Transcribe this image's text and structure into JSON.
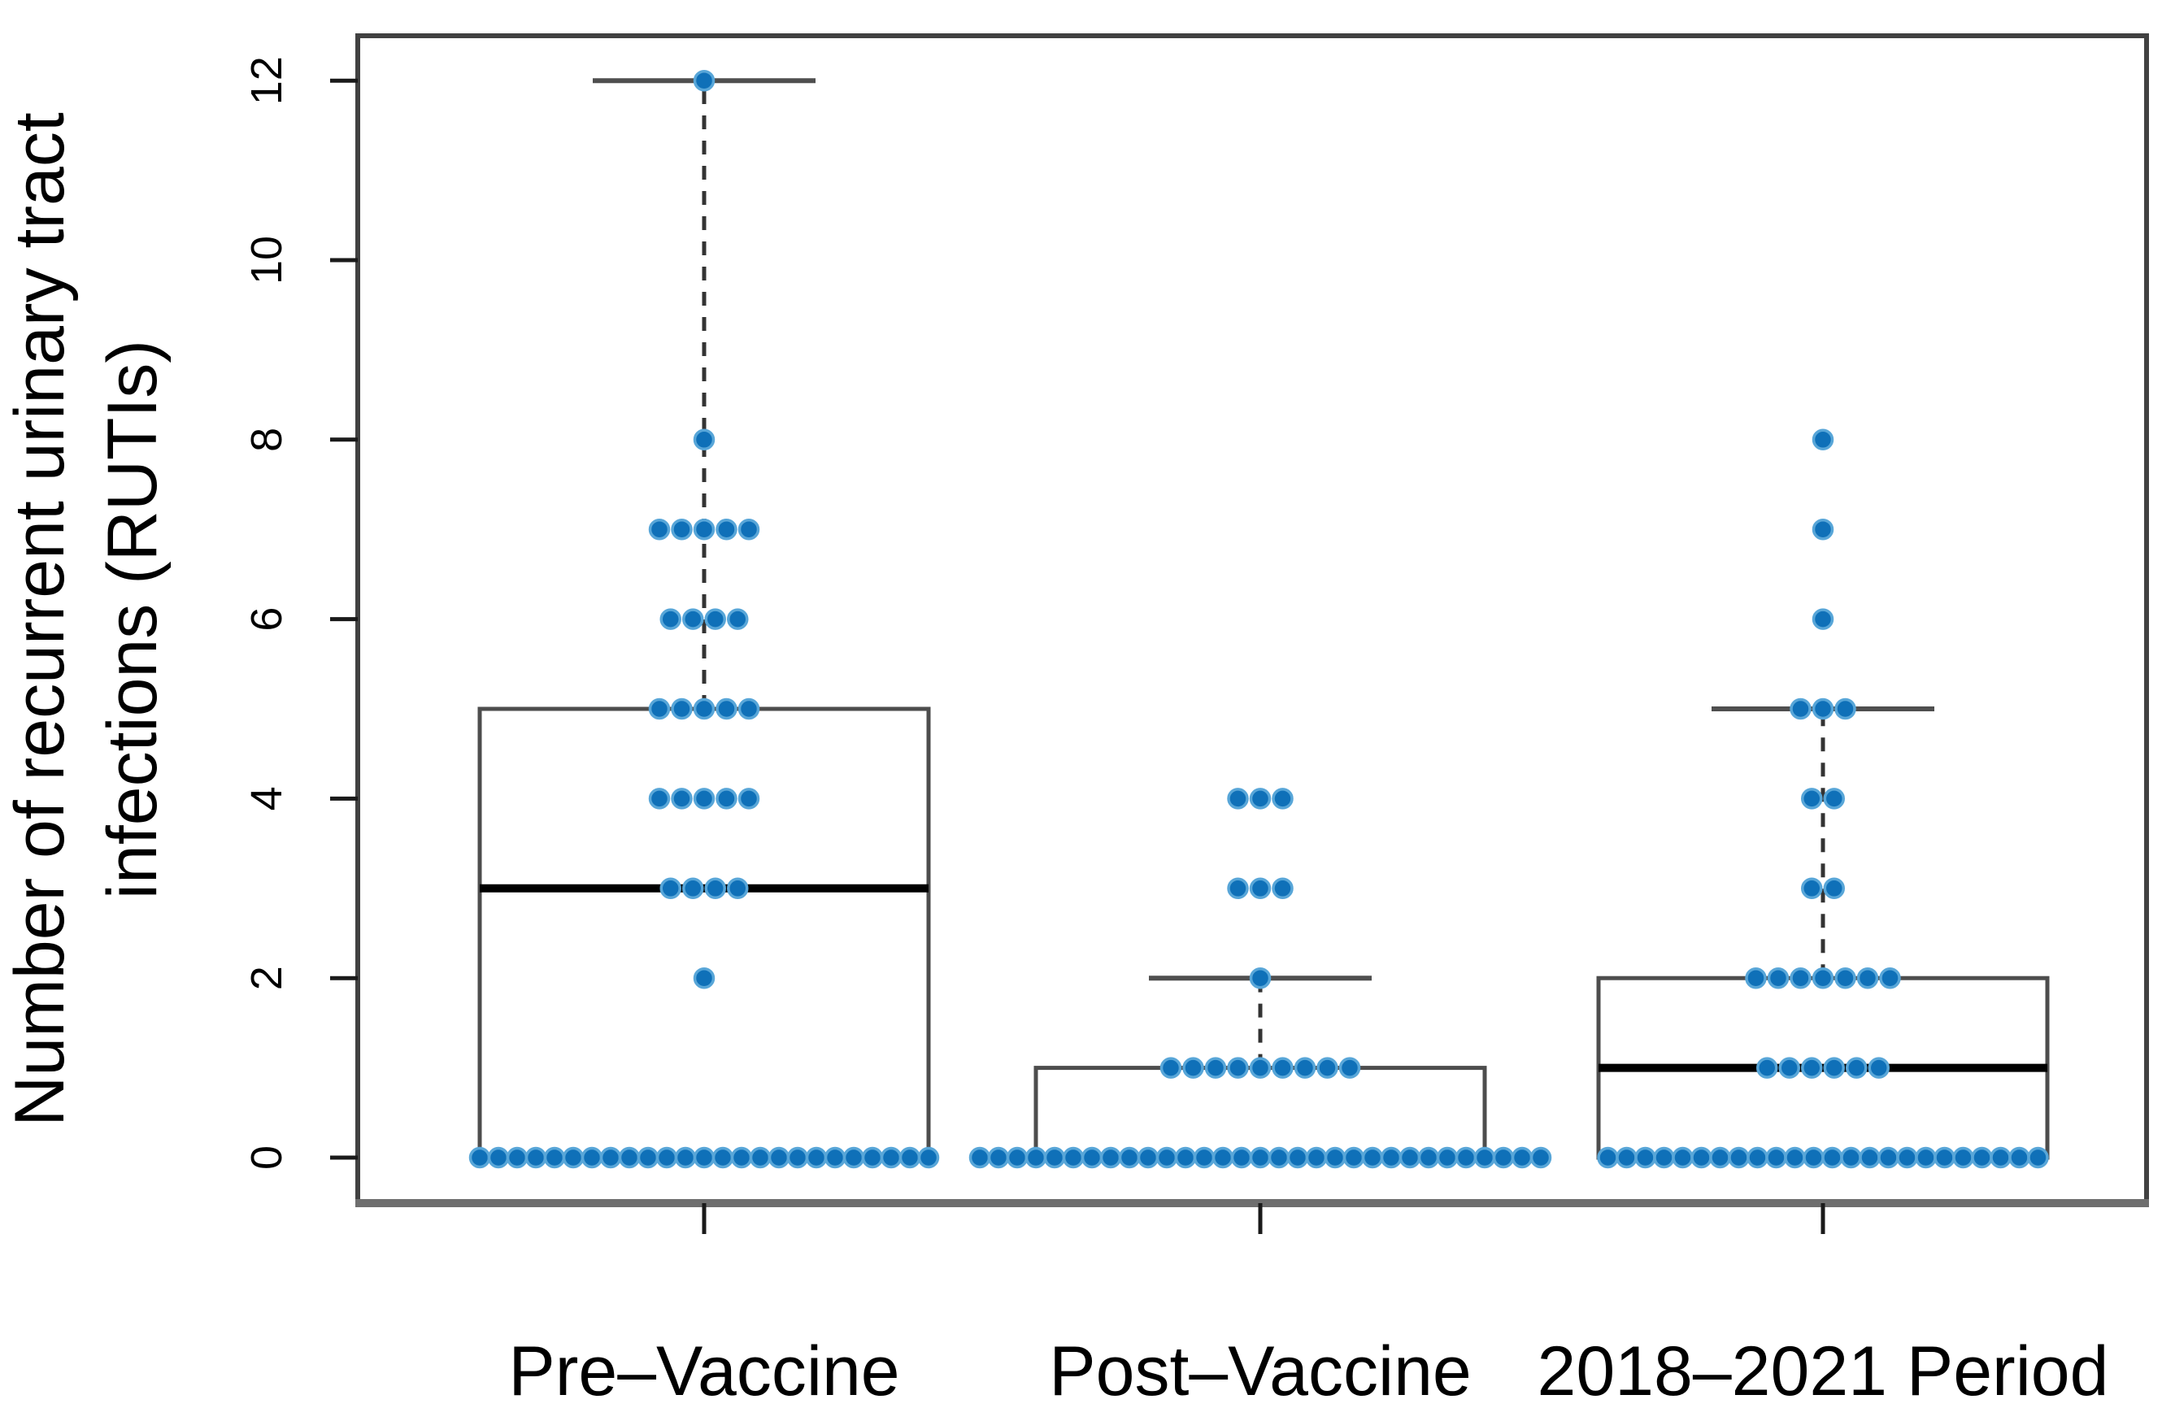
{
  "chart_data": {
    "type": "boxplot",
    "title": "",
    "ylabel_line1": "Number of recurrent urinary tract",
    "ylabel_line2": "infections (RUTIs)",
    "xlabel": "",
    "ylim": [
      0,
      12
    ],
    "yticks": [
      0,
      2,
      4,
      6,
      8,
      10,
      12
    ],
    "grid": false,
    "legend": null,
    "categories": [
      "Pre–Vaccine",
      "Post–Vaccine",
      "2018–2021 Period"
    ],
    "groups": [
      {
        "label": "Pre–Vaccine",
        "box": {
          "q1": 0,
          "median": 3,
          "q3": 5,
          "whisker_low": 0,
          "whisker_high": 12
        },
        "dot_counts": {
          "0": 25,
          "2": 1,
          "3": 4,
          "4": 5,
          "5": 5,
          "6": 4,
          "7": 5,
          "8": 1,
          "12": 1
        }
      },
      {
        "label": "Post–Vaccine",
        "box": {
          "q1": 0,
          "median": 0,
          "q3": 1,
          "whisker_low": 0,
          "whisker_high": 2
        },
        "dot_counts": {
          "0": 31,
          "1": 9,
          "2": 1,
          "3": 3,
          "4": 3
        }
      },
      {
        "label": "2018–2021 Period",
        "box": {
          "q1": 0,
          "median": 1,
          "q3": 2,
          "whisker_low": 0,
          "whisker_high": 5
        },
        "dot_counts": {
          "0": 24,
          "1": 6,
          "2": 7,
          "3": 2,
          "4": 2,
          "5": 3,
          "6": 1,
          "7": 1,
          "8": 1
        }
      }
    ],
    "colors": {
      "dot_fill": "#0f70b8",
      "dot_edge": "#58a6d8",
      "box_border": "#4d4d4d",
      "median": "#000000",
      "whisker": "#333333",
      "whisker_cap": "#4f4f4f",
      "frame": "#414141",
      "bottom_axis": "#6e6e6e",
      "tick": "#1a1a1a",
      "text": "#000000",
      "background": "#ffffff"
    }
  }
}
